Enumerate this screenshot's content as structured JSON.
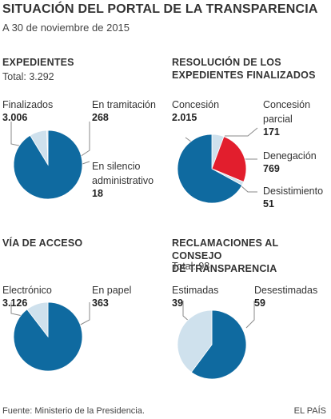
{
  "header": {
    "title": "SITUACIÓN DEL PORTAL DE LA TRANSPARENCIA",
    "subtitle": "A 30 de noviembre de 2015"
  },
  "colors": {
    "dark_blue": "#0f6aa0",
    "light_blue": "#cfe1ed",
    "red": "#e21e2d",
    "leader": "#8a8a8a"
  },
  "chart_data": [
    {
      "type": "pie",
      "title": "EXPEDIENTES",
      "subtitle": "Total: 3.292",
      "slices": [
        {
          "label": "Finalizados",
          "value_label": "3.006",
          "value": 3006,
          "color": "#0f6aa0"
        },
        {
          "label": "En tramitación",
          "value_label": "268",
          "value": 268,
          "color": "#cfe1ed"
        },
        {
          "label": "En silencio administrativo",
          "value_label": "18",
          "value": 18,
          "color": "#cfe1ed"
        }
      ]
    },
    {
      "type": "pie",
      "title": "RESOLUCIÓN DE LOS EXPEDIENTES FINALIZADOS",
      "title_lines": [
        "RESOLUCIÓN DE LOS",
        "EXPEDIENTES FINALIZADOS"
      ],
      "slices": [
        {
          "label": "Concesión",
          "value_label": "2.015",
          "value": 2015,
          "color": "#0f6aa0"
        },
        {
          "label": "Concesión parcial",
          "label_lines": [
            "Concesión",
            "parcial"
          ],
          "value_label": "171",
          "value": 171,
          "color": "#cfe1ed"
        },
        {
          "label": "Denegación",
          "value_label": "769",
          "value": 769,
          "color": "#e21e2d"
        },
        {
          "label": "Desistimiento",
          "value_label": "51",
          "value": 51,
          "color": "#cfe1ed"
        }
      ]
    },
    {
      "type": "pie",
      "title": "VÍA DE ACCESO",
      "slices": [
        {
          "label": "Electrónico",
          "value_label": "3.126",
          "value": 3126,
          "color": "#0f6aa0"
        },
        {
          "label": "En papel",
          "value_label": "363",
          "value": 363,
          "color": "#cfe1ed"
        }
      ]
    },
    {
      "type": "pie",
      "title": "RECLAMACIONES AL CONSEJO DE TRANSPARENCIA",
      "title_lines": [
        "RECLAMACIONES AL CONSEJO",
        "DE TRANSPARENCIA"
      ],
      "subtitle": "Total: 98",
      "slices": [
        {
          "label": "Estimadas",
          "value_label": "39",
          "value": 39,
          "color": "#cfe1ed"
        },
        {
          "label": "Desestimadas",
          "value_label": "59",
          "value": 59,
          "color": "#0f6aa0"
        }
      ]
    }
  ],
  "footer": {
    "source": "Fuente: Ministerio de la Presidencia.",
    "brand": "EL PAÍS"
  }
}
